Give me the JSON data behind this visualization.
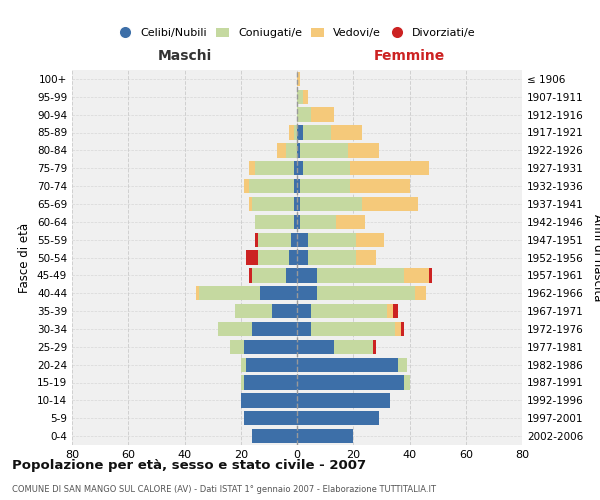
{
  "age_groups": [
    "0-4",
    "5-9",
    "10-14",
    "15-19",
    "20-24",
    "25-29",
    "30-34",
    "35-39",
    "40-44",
    "45-49",
    "50-54",
    "55-59",
    "60-64",
    "65-69",
    "70-74",
    "75-79",
    "80-84",
    "85-89",
    "90-94",
    "95-99",
    "100+"
  ],
  "birth_years": [
    "2002-2006",
    "1997-2001",
    "1992-1996",
    "1987-1991",
    "1982-1986",
    "1977-1981",
    "1972-1976",
    "1967-1971",
    "1962-1966",
    "1957-1961",
    "1952-1956",
    "1947-1951",
    "1942-1946",
    "1937-1941",
    "1932-1936",
    "1927-1931",
    "1922-1926",
    "1917-1921",
    "1912-1916",
    "1907-1911",
    "≤ 1906"
  ],
  "maschi_celibi": [
    16,
    19,
    20,
    19,
    18,
    19,
    16,
    9,
    13,
    4,
    3,
    2,
    1,
    1,
    1,
    1,
    0,
    0,
    0,
    0,
    0
  ],
  "maschi_coniugati": [
    0,
    0,
    0,
    1,
    2,
    5,
    12,
    13,
    22,
    12,
    11,
    12,
    14,
    15,
    16,
    14,
    4,
    1,
    0,
    0,
    0
  ],
  "maschi_vedovi": [
    0,
    0,
    0,
    0,
    0,
    0,
    0,
    0,
    1,
    0,
    0,
    0,
    0,
    1,
    2,
    2,
    3,
    2,
    0,
    0,
    0
  ],
  "maschi_divorziati": [
    0,
    0,
    0,
    0,
    0,
    0,
    0,
    0,
    0,
    1,
    4,
    1,
    0,
    0,
    0,
    0,
    0,
    0,
    0,
    0,
    0
  ],
  "femmine_celibi": [
    20,
    29,
    33,
    38,
    36,
    13,
    5,
    5,
    7,
    7,
    4,
    4,
    1,
    1,
    1,
    2,
    1,
    2,
    0,
    0,
    0
  ],
  "femmine_coniugati": [
    0,
    0,
    0,
    2,
    3,
    14,
    30,
    27,
    35,
    31,
    17,
    17,
    13,
    22,
    18,
    17,
    17,
    10,
    5,
    2,
    0
  ],
  "femmine_vedovi": [
    0,
    0,
    0,
    0,
    0,
    0,
    2,
    2,
    4,
    9,
    7,
    10,
    10,
    20,
    21,
    28,
    11,
    11,
    8,
    2,
    1
  ],
  "femmine_divorziati": [
    0,
    0,
    0,
    0,
    0,
    1,
    1,
    2,
    0,
    1,
    0,
    0,
    0,
    0,
    0,
    0,
    0,
    0,
    0,
    0,
    0
  ],
  "color_celibi": "#3d6fa8",
  "color_coniugati": "#c5d9a0",
  "color_vedovi": "#f5c97a",
  "color_divorziati": "#cc2222",
  "title": "Popolazione per età, sesso e stato civile - 2007",
  "subtitle": "COMUNE DI SAN MANGO SUL CALORE (AV) - Dati ISTAT 1° gennaio 2007 - Elaborazione TUTTITALIA.IT",
  "xlabel_left": "Maschi",
  "xlabel_right": "Femmine",
  "ylabel_left": "Fasce di età",
  "ylabel_right": "Anni di nascita",
  "xlim": 80,
  "bg_color": "#f0f0f0",
  "grid_color": "#cccccc"
}
